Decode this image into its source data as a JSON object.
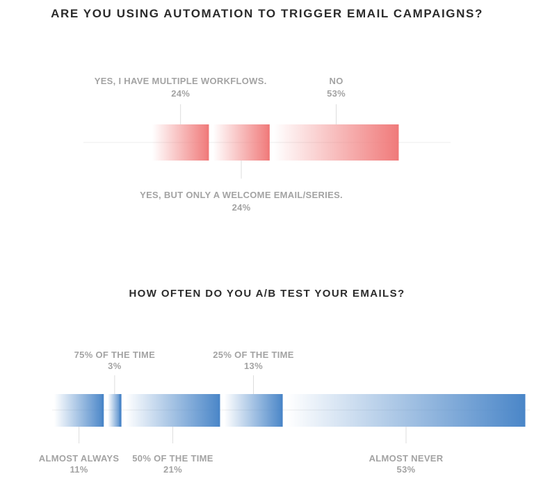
{
  "chart_data": [
    {
      "type": "bar",
      "title": "ARE YOU USING AUTOMATION TO TRIGGER EMAIL CAMPAIGNS?",
      "color": "#f07a7a",
      "categories": [
        "YES, I HAVE MULTIPLE WORKFLOWS.",
        "YES, BUT ONLY A WELCOME EMAIL/SERIES.",
        "NO"
      ],
      "values": [
        24,
        24,
        53
      ],
      "value_labels": [
        "24%",
        "24%",
        "53%"
      ],
      "label_side": [
        "top",
        "bottom",
        "top"
      ]
    },
    {
      "type": "bar",
      "title": "HOW OFTEN DO YOU A/B TEST YOUR EMAILS?",
      "color": "#4a86c8",
      "categories": [
        "ALMOST ALWAYS",
        "75% OF THE TIME",
        "50% OF THE TIME",
        "25% OF THE TIME",
        "ALMOST NEVER"
      ],
      "values": [
        11,
        3,
        21,
        13,
        53
      ],
      "value_labels": [
        "11%",
        "3%",
        "21%",
        "13%",
        "53%"
      ],
      "label_side": [
        "bottom",
        "top",
        "bottom",
        "top",
        "bottom"
      ]
    }
  ]
}
